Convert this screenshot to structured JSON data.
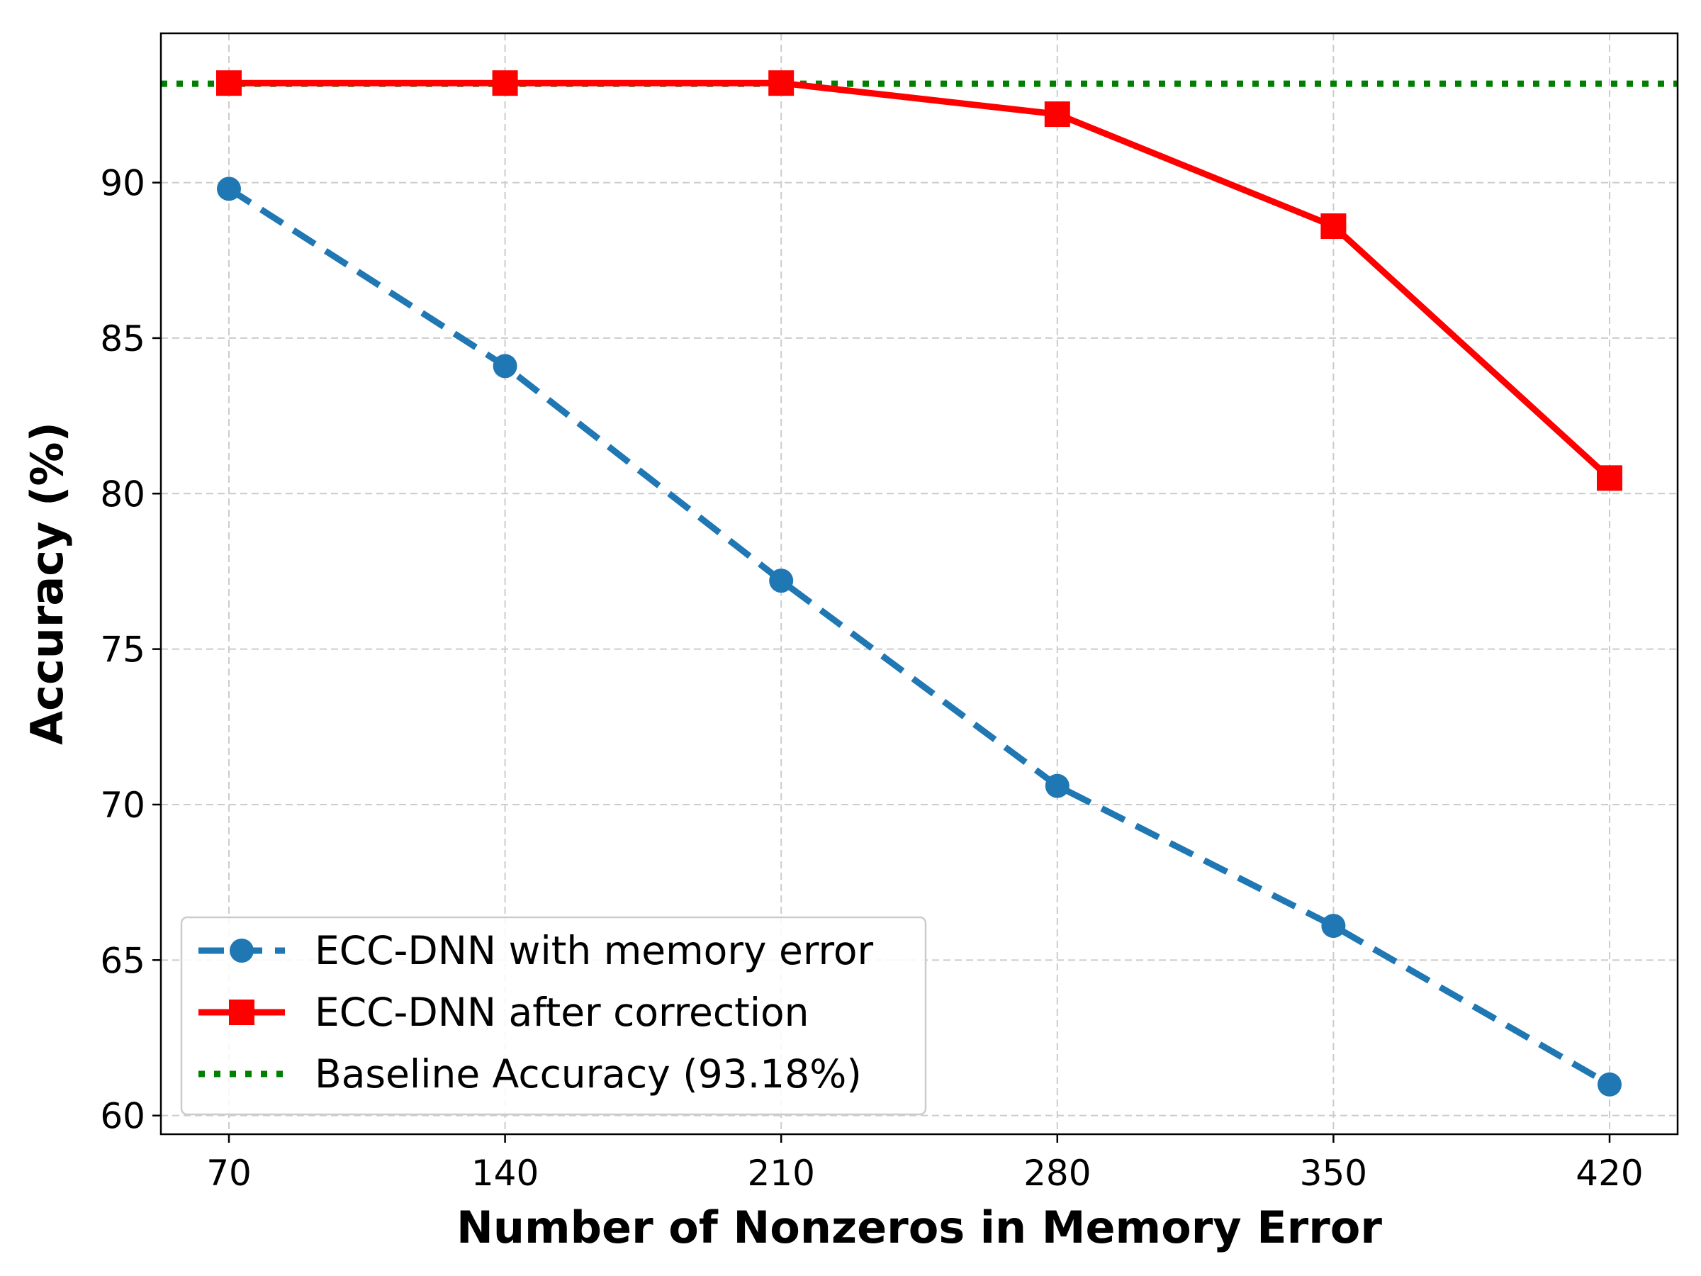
{
  "chart_data": {
    "type": "line",
    "xlabel": "Number of Nonzeros in Memory Error",
    "ylabel": "Accuracy (%)",
    "x": [
      70,
      140,
      210,
      280,
      350,
      420
    ],
    "xticks": [
      70,
      140,
      210,
      280,
      350,
      420
    ],
    "yticks": [
      60,
      65,
      70,
      75,
      80,
      85,
      90
    ],
    "ylim": [
      59.4,
      94.8
    ],
    "grid": true,
    "legend_position": "lower-left",
    "series": [
      {
        "name": "ECC-DNN with memory error",
        "values": [
          89.8,
          84.1,
          77.2,
          70.6,
          66.1,
          61.0
        ],
        "color": "#1f77b4",
        "line_style": "dashed",
        "marker": "circle"
      },
      {
        "name": "ECC-DNN after correction",
        "values": [
          93.2,
          93.2,
          93.2,
          92.2,
          88.6,
          80.5
        ],
        "color": "#ff0000",
        "line_style": "solid",
        "marker": "square"
      }
    ],
    "reference_lines": [
      {
        "name": "Baseline Accuracy (93.18%)",
        "value": 93.18,
        "color": "#008000",
        "line_style": "dotted"
      }
    ]
  }
}
